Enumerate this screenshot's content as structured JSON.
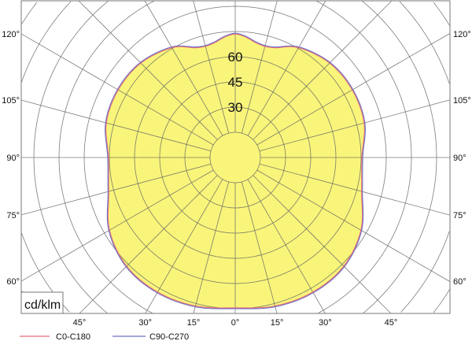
{
  "chart_data": {
    "type": "polar",
    "unit_label": "cd/klm",
    "ring_step": 15,
    "ring_labels": [
      "30",
      "45",
      "60"
    ],
    "ring_label_values": [
      30,
      45,
      60
    ],
    "angle_step_deg": 15,
    "bottom_angle_labels": [
      "45°",
      "30°",
      "15°",
      "0°",
      "15°",
      "30°",
      "45°"
    ],
    "bottom_angle_values": [
      -45,
      -30,
      -15,
      0,
      15,
      30,
      45
    ],
    "side_angle_labels": [
      "120°",
      "105°",
      "90°",
      "75°",
      "60°"
    ],
    "side_angle_values": [
      120,
      105,
      90,
      75,
      60
    ],
    "fill_color": "#f9f57a",
    "grid": true,
    "series": [
      {
        "name": "C0-C180",
        "color": "#e86a7a",
        "gamma": [
          0,
          15,
          30,
          45,
          60,
          75,
          90,
          105,
          120,
          135,
          150,
          160,
          165,
          170,
          175,
          180
        ],
        "values": [
          89.5,
          91.5,
          92.5,
          91.5,
          86.5,
          78,
          75.5,
          79.5,
          80.5,
          79.5,
          75.5,
          69.5,
          68.5,
          69.5,
          72,
          73.5
        ]
      },
      {
        "name": "C90-C270",
        "color": "#6f72c8",
        "gamma": [
          0,
          15,
          30,
          45,
          60,
          75,
          90,
          105,
          120,
          135,
          150,
          160,
          165,
          170,
          175,
          180
        ],
        "values": [
          90,
          92,
          93,
          92,
          87,
          78.5,
          76,
          80,
          81,
          80,
          76,
          70,
          69,
          70,
          72.5,
          74
        ]
      }
    ]
  }
}
